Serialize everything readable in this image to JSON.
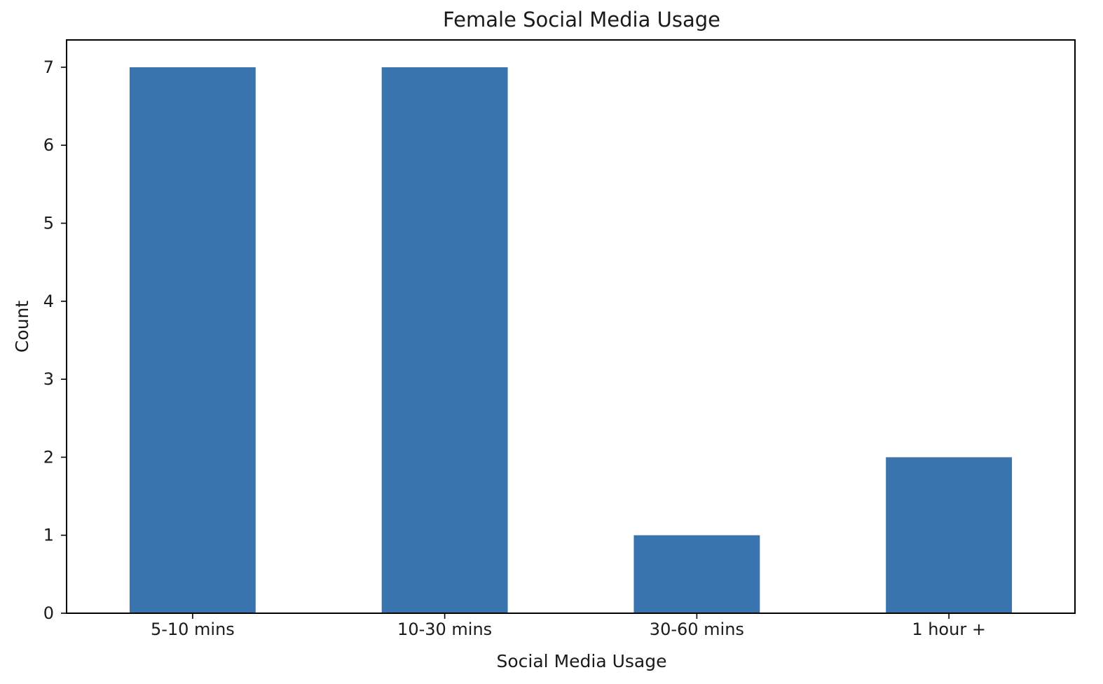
{
  "chart_data": {
    "type": "bar",
    "title": "Female Social Media Usage",
    "xlabel": "Social Media Usage",
    "ylabel": "Count",
    "categories": [
      "5-10 mins",
      "10-30 mins",
      "30-60 mins",
      "1 hour +"
    ],
    "values": [
      7,
      7,
      1,
      2
    ],
    "ylim": [
      0,
      7.35
    ],
    "yticks": [
      0,
      1,
      2,
      3,
      4,
      5,
      6,
      7
    ],
    "grid": false,
    "bar_color": "#3a74ae"
  }
}
